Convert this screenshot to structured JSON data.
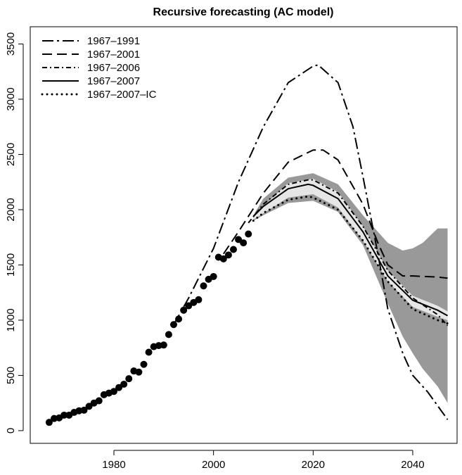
{
  "chart_data": {
    "type": "line",
    "title": "Recursive forecasting (AC model)",
    "xlim": [
      1963.2,
      2048.9
    ],
    "ylim": [
      -115,
      3656
    ],
    "xticks": [
      1980,
      2000,
      2020,
      2040
    ],
    "yticks": [
      0,
      500,
      1000,
      1500,
      2000,
      2500,
      3000,
      3500
    ],
    "legend": "top-left",
    "points": {
      "color": "#000000",
      "x": [
        1967,
        1968,
        1969,
        1970,
        1971,
        1972,
        1973,
        1974,
        1975,
        1976,
        1977,
        1978,
        1979,
        1980,
        1981,
        1982,
        1983,
        1984,
        1985,
        1986,
        1987,
        1988,
        1989,
        1990,
        1991,
        1992,
        1993,
        1994,
        1995,
        1996,
        1997,
        1998,
        1999,
        2000,
        2001,
        2002,
        2003,
        2004,
        2005,
        2006,
        2007
      ],
      "values": [
        75,
        110,
        115,
        140,
        140,
        165,
        180,
        185,
        220,
        250,
        270,
        325,
        340,
        355,
        390,
        420,
        470,
        540,
        530,
        600,
        710,
        760,
        770,
        775,
        870,
        960,
        1010,
        1090,
        1130,
        1160,
        1185,
        1310,
        1370,
        1395,
        1570,
        1555,
        1590,
        1640,
        1730,
        1700,
        1780
      ]
    },
    "bands": [
      {
        "color": "#999999",
        "x": [
          2008,
          2010,
          2015,
          2020,
          2025,
          2030,
          2035,
          2038,
          2040,
          2042,
          2045,
          2047
        ],
        "upper": [
          1950,
          2100,
          2290,
          2330,
          2230,
          1950,
          1700,
          1630,
          1650,
          1700,
          1830,
          1830
        ],
        "lower": [
          1900,
          1950,
          2060,
          2080,
          1980,
          1680,
          1150,
          850,
          700,
          560,
          400,
          250
        ]
      },
      {
        "color": "#e6e6e6",
        "x": [
          2008,
          2015,
          2020,
          2025,
          2030,
          2035,
          2040,
          2045,
          2047
        ],
        "upper": [
          1950,
          2240,
          2280,
          2160,
          1850,
          1450,
          1220,
          1130,
          1080
        ],
        "lower": [
          1910,
          2110,
          2140,
          2020,
          1720,
          1350,
          1120,
          1030,
          1000
        ]
      }
    ],
    "series": [
      {
        "name": "1967–1991",
        "color": "#000000",
        "dash": "dotdash",
        "x": [
          1992,
          1995,
          2000,
          2005,
          2010,
          2015,
          2020,
          2021,
          2025,
          2028,
          2030,
          2033,
          2035,
          2038,
          2040,
          2043,
          2047
        ],
        "values": [
          960,
          1200,
          1650,
          2250,
          2750,
          3150,
          3300,
          3310,
          3150,
          2750,
          2300,
          1600,
          1100,
          700,
          500,
          350,
          100
        ]
      },
      {
        "name": "1967–2001",
        "color": "#000000",
        "dash": "dashed",
        "x": [
          2002,
          2005,
          2010,
          2015,
          2020,
          2022,
          2025,
          2030,
          2033,
          2035,
          2038,
          2040,
          2045,
          2047
        ],
        "values": [
          1600,
          1800,
          2150,
          2430,
          2540,
          2540,
          2450,
          2050,
          1700,
          1500,
          1400,
          1400,
          1390,
          1380
        ]
      },
      {
        "name": "1967–2006",
        "color": "#000000",
        "dash": "dashdot",
        "x": [
          2007,
          2010,
          2015,
          2019,
          2020,
          2025,
          2030,
          2035,
          2040,
          2045,
          2047
        ],
        "values": [
          1880,
          2050,
          2230,
          2270,
          2270,
          2150,
          1850,
          1450,
          1200,
          1050,
          950
        ]
      },
      {
        "name": "1967–2007",
        "color": "#000000",
        "dash": "solid",
        "x": [
          2008,
          2010,
          2015,
          2019,
          2020,
          2025,
          2030,
          2035,
          2040,
          2045,
          2047
        ],
        "values": [
          1940,
          2030,
          2190,
          2230,
          2220,
          2100,
          1800,
          1400,
          1180,
          1090,
          1040
        ]
      },
      {
        "name": "1967–2007–IC",
        "color": "#000000",
        "dash": "dotted",
        "x": [
          2008,
          2010,
          2015,
          2019,
          2020,
          2025,
          2030,
          2035,
          2040,
          2045,
          2047
        ],
        "values": [
          1900,
          1970,
          2090,
          2120,
          2110,
          2000,
          1720,
          1350,
          1100,
          1000,
          970
        ]
      }
    ]
  }
}
